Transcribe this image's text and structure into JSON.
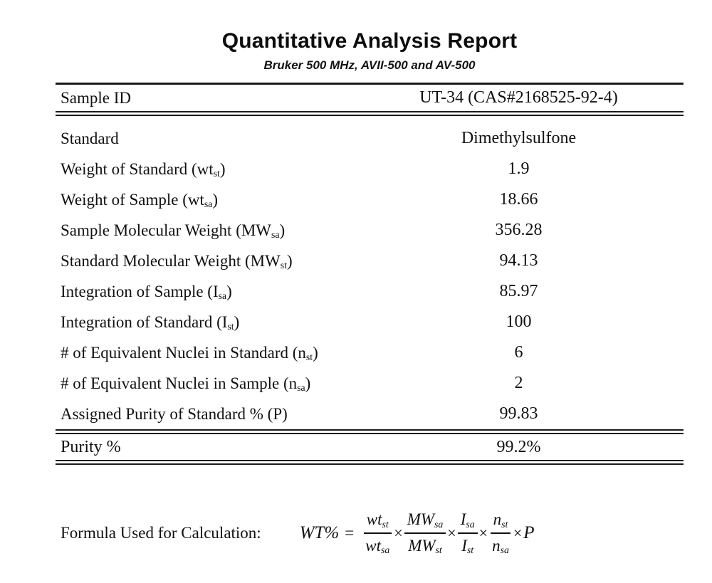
{
  "colors": {
    "background": "#ffffff",
    "text": "#111111",
    "rule": "#1a1a1a"
  },
  "page": {
    "title": "Quantitative Analysis Report",
    "subtitle": "Bruker 500 MHz, AVII-500 and AV-500"
  },
  "table": {
    "header_row": {
      "label": "Sample ID",
      "value": "UT-34 (CAS#2168525-92-4)"
    },
    "rows": [
      {
        "pre": "Standard",
        "sub": "",
        "post": "",
        "value": "Dimethylsulfone"
      },
      {
        "pre": "Weight of Standard (wt",
        "sub": "st",
        "post": ")",
        "value": "1.9"
      },
      {
        "pre": "Weight of Sample (wt",
        "sub": "sa",
        "post": ")",
        "value": "18.66"
      },
      {
        "pre": "Sample Molecular Weight (MW",
        "sub": "sa",
        "post": ")",
        "value": "356.28"
      },
      {
        "pre": "Standard Molecular Weight (MW",
        "sub": "st",
        "post": ")",
        "value": "94.13"
      },
      {
        "pre": "Integration of Sample (I",
        "sub": "sa",
        "post": ")",
        "value": "85.97"
      },
      {
        "pre": "Integration of Standard (I",
        "sub": "st",
        "post": ")",
        "value": "100"
      },
      {
        "pre": "# of Equivalent Nuclei in Standard (n",
        "sub": "st",
        "post": ")",
        "value": "6"
      },
      {
        "pre": "# of Equivalent Nuclei in Sample (n",
        "sub": "sa",
        "post": ")",
        "value": "2"
      },
      {
        "pre": "Assigned Purity of Standard % (P)",
        "sub": "",
        "post": "",
        "value": "99.83"
      }
    ],
    "result_row": {
      "label": "Purity %",
      "value": "99.2%"
    }
  },
  "formula": {
    "label": "Formula Used for Calculation:",
    "lhs": "WT%",
    "equals": "=",
    "times": "×",
    "fractions": [
      {
        "num_base": "wt",
        "num_sub": "st",
        "den_base": "wt",
        "den_sub": "sa"
      },
      {
        "num_base": "MW",
        "num_sub": "sa",
        "den_base": "MW",
        "den_sub": "st"
      },
      {
        "num_base": "I",
        "num_sub": "sa",
        "den_base": "I",
        "den_sub": "st"
      },
      {
        "num_base": "n",
        "num_sub": "st",
        "den_base": "n",
        "den_sub": "sa"
      }
    ],
    "p_term": "P"
  }
}
